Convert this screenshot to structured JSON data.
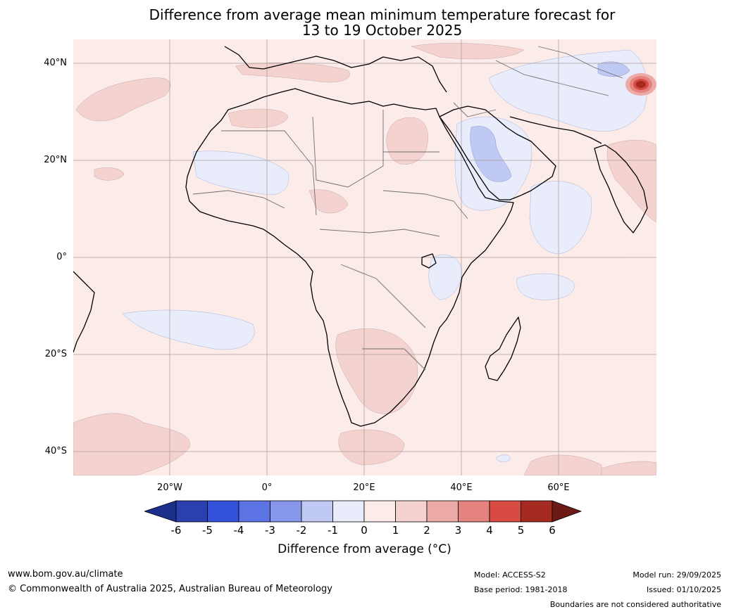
{
  "title_line1": "Difference from average mean minimum temperature forecast for",
  "title_line2": "13 to 19 October 2025",
  "latitude_labels": [
    "40°N",
    "20°N",
    "0°",
    "20°S",
    "40°S"
  ],
  "longitude_labels": [
    "20°W",
    "0°",
    "20°E",
    "40°E",
    "60°E"
  ],
  "colorbar": {
    "ticks": [
      "-6",
      "-5",
      "-4",
      "-3",
      "-2",
      "-1",
      "0",
      "1",
      "2",
      "3",
      "4",
      "5",
      "6"
    ],
    "colors": [
      "#1c2f8a",
      "#2a40ad",
      "#3352dc",
      "#5b73e3",
      "#8797ea",
      "#c0c9f3",
      "#e8ecfb",
      "#fbebe9",
      "#f3d2cf",
      "#ebaaa6",
      "#e4827d",
      "#d84a42",
      "#a52a22",
      "#6e1a14"
    ],
    "label": "Difference from average (°C)"
  },
  "footer": {
    "website": "www.bom.gov.au/climate",
    "copyright": "© Commonwealth of Australia 2025, Australian Bureau of Meteorology",
    "model": "Model: ACCESS-S2",
    "base_period": "Base period: 1981-2018",
    "model_run": "Model run: 29/09/2025",
    "issued": "Issued: 01/10/2025",
    "disclaimer": "Boundaries are not considered authoritative"
  }
}
